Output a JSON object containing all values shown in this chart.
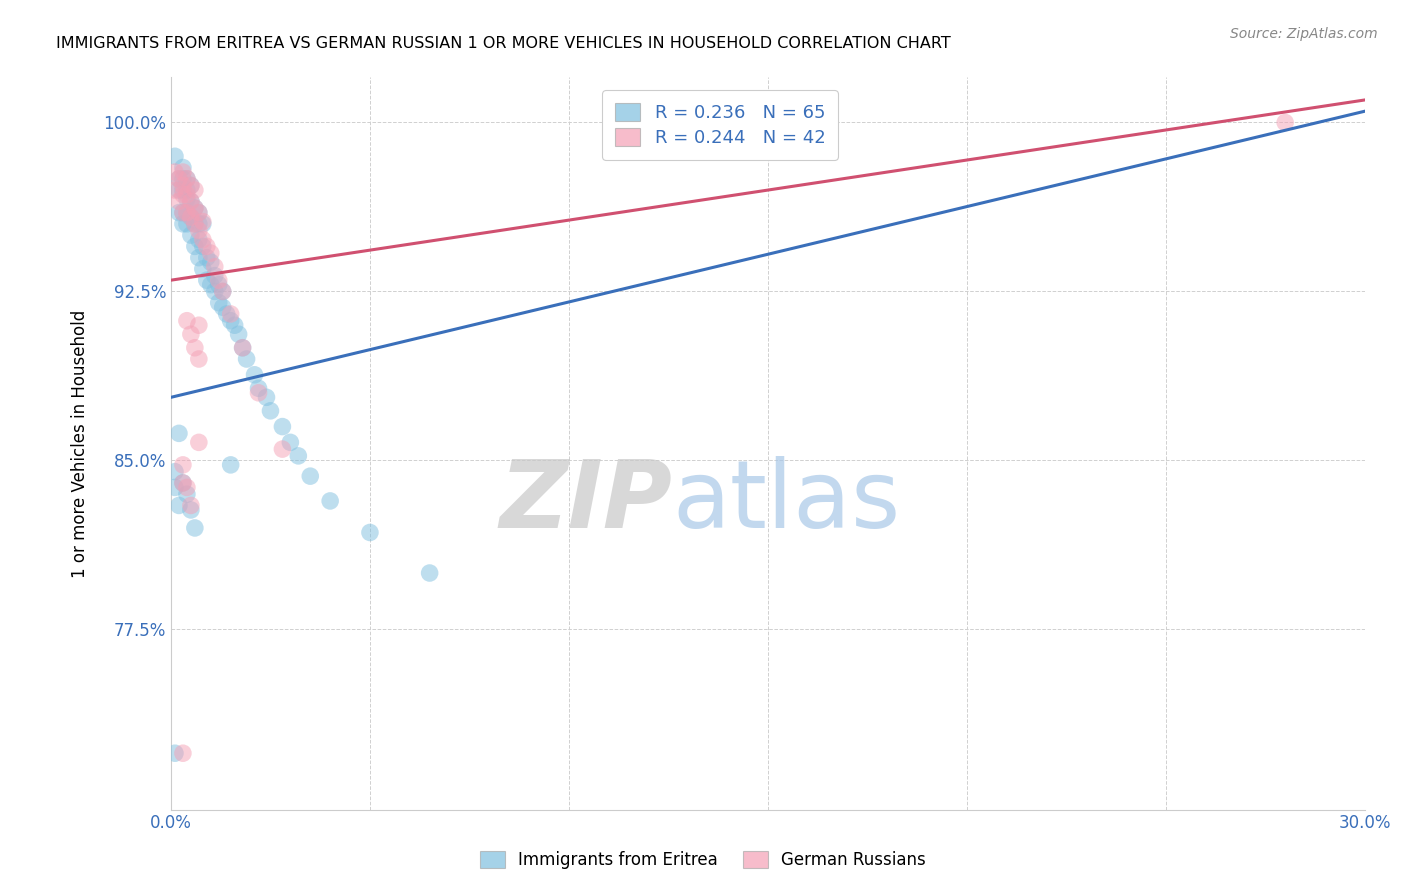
{
  "title": "IMMIGRANTS FROM ERITREA VS GERMAN RUSSIAN 1 OR MORE VEHICLES IN HOUSEHOLD CORRELATION CHART",
  "source": "Source: ZipAtlas.com",
  "ylabel": "1 or more Vehicles in Household",
  "xlim": [
    0.0,
    0.3
  ],
  "ylim": [
    0.695,
    1.02
  ],
  "yticks": [
    0.775,
    0.85,
    0.925,
    1.0
  ],
  "ytick_labels": [
    "77.5%",
    "85.0%",
    "92.5%",
    "100.0%"
  ],
  "xticks": [
    0.0,
    0.05,
    0.1,
    0.15,
    0.2,
    0.25,
    0.3
  ],
  "xtick_labels": [
    "0.0%",
    "",
    "",
    "",
    "",
    "",
    "30.0%"
  ],
  "blue_R": 0.236,
  "blue_N": 65,
  "pink_R": 0.244,
  "pink_N": 42,
  "blue_color": "#7fbfdf",
  "pink_color": "#f4a0b5",
  "blue_line_color": "#3a6fba",
  "pink_line_color": "#d05070",
  "legend_label_blue": "Immigrants from Eritrea",
  "legend_label_pink": "German Russians",
  "watermark_zip": "ZIP",
  "watermark_atlas": "atlas",
  "blue_scatter_x": [
    0.001,
    0.001,
    0.001,
    0.002,
    0.002,
    0.002,
    0.002,
    0.003,
    0.003,
    0.003,
    0.003,
    0.003,
    0.004,
    0.004,
    0.004,
    0.004,
    0.004,
    0.005,
    0.005,
    0.005,
    0.005,
    0.006,
    0.006,
    0.006,
    0.007,
    0.007,
    0.007,
    0.007,
    0.008,
    0.008,
    0.008,
    0.009,
    0.009,
    0.01,
    0.01,
    0.011,
    0.011,
    0.012,
    0.012,
    0.013,
    0.013,
    0.014,
    0.015,
    0.015,
    0.016,
    0.017,
    0.018,
    0.019,
    0.021,
    0.022,
    0.024,
    0.025,
    0.028,
    0.03,
    0.032,
    0.035,
    0.04,
    0.05,
    0.065,
    0.001,
    0.002,
    0.003,
    0.004,
    0.005,
    0.006
  ],
  "blue_scatter_y": [
    0.72,
    0.845,
    0.985,
    0.83,
    0.96,
    0.97,
    0.975,
    0.955,
    0.96,
    0.97,
    0.975,
    0.98,
    0.955,
    0.96,
    0.966,
    0.97,
    0.975,
    0.95,
    0.958,
    0.965,
    0.972,
    0.945,
    0.955,
    0.962,
    0.94,
    0.948,
    0.955,
    0.96,
    0.935,
    0.945,
    0.955,
    0.93,
    0.94,
    0.928,
    0.938,
    0.925,
    0.932,
    0.92,
    0.928,
    0.918,
    0.925,
    0.915,
    0.848,
    0.912,
    0.91,
    0.906,
    0.9,
    0.895,
    0.888,
    0.882,
    0.878,
    0.872,
    0.865,
    0.858,
    0.852,
    0.843,
    0.832,
    0.818,
    0.8,
    0.838,
    0.862,
    0.84,
    0.835,
    0.828,
    0.82
  ],
  "pink_scatter_x": [
    0.001,
    0.001,
    0.002,
    0.002,
    0.003,
    0.003,
    0.003,
    0.003,
    0.004,
    0.004,
    0.004,
    0.005,
    0.005,
    0.005,
    0.006,
    0.006,
    0.006,
    0.007,
    0.007,
    0.008,
    0.008,
    0.009,
    0.01,
    0.011,
    0.012,
    0.013,
    0.015,
    0.018,
    0.022,
    0.028,
    0.003,
    0.004,
    0.005,
    0.006,
    0.007,
    0.003,
    0.004,
    0.005,
    0.007,
    0.007,
    0.28,
    0.003
  ],
  "pink_scatter_y": [
    0.97,
    0.978,
    0.965,
    0.975,
    0.96,
    0.968,
    0.972,
    0.978,
    0.96,
    0.968,
    0.975,
    0.958,
    0.965,
    0.972,
    0.955,
    0.962,
    0.97,
    0.952,
    0.96,
    0.948,
    0.956,
    0.945,
    0.942,
    0.936,
    0.93,
    0.925,
    0.915,
    0.9,
    0.88,
    0.855,
    0.84,
    0.912,
    0.906,
    0.9,
    0.895,
    0.848,
    0.838,
    0.83,
    0.91,
    0.858,
    1.0,
    0.72
  ],
  "blue_trendline_x0": 0.0,
  "blue_trendline_y0": 0.878,
  "blue_trendline_x1": 0.3,
  "blue_trendline_y1": 1.005,
  "pink_trendline_x0": 0.0,
  "pink_trendline_y0": 0.93,
  "pink_trendline_x1": 0.3,
  "pink_trendline_y1": 1.01
}
